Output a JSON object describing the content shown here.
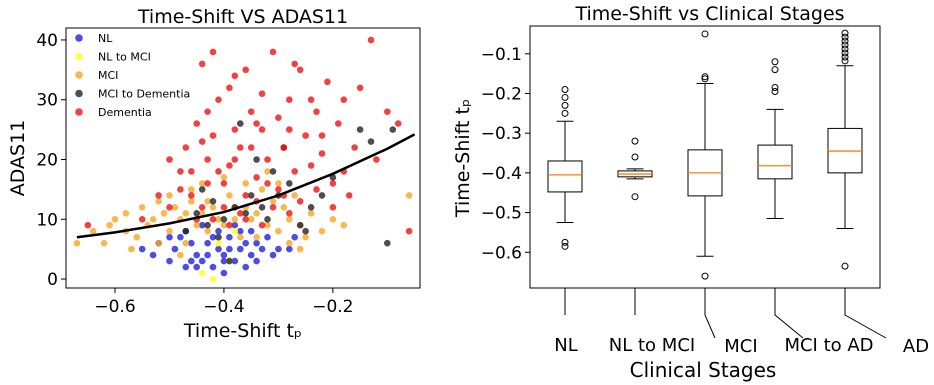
{
  "chart_data": [
    {
      "type": "scatter",
      "title": "Time-Shift VS ADAS11",
      "xlabel": "Time-Shift tₚ",
      "ylabel": "ADAS11",
      "xlim": [
        -0.69,
        -0.04
      ],
      "ylim": [
        -1.5,
        42
      ],
      "xticks": [
        -0.6,
        -0.4,
        -0.2
      ],
      "xtick_labels": [
        "−0.6",
        "−0.4",
        "−0.2"
      ],
      "yticks": [
        0,
        10,
        20,
        30,
        40
      ],
      "ytick_labels": [
        "0",
        "10",
        "20",
        "30",
        "40"
      ],
      "legend_position": "top-left",
      "series": [
        {
          "name": "NL",
          "color": "#1f1fe0",
          "points": [
            [
              -0.5,
              3
            ],
            [
              -0.49,
              5
            ],
            [
              -0.48,
              7
            ],
            [
              -0.47,
              2
            ],
            [
              -0.46,
              6
            ],
            [
              -0.45,
              4
            ],
            [
              -0.44,
              3
            ],
            [
              -0.43,
              6
            ],
            [
              -0.42,
              2
            ],
            [
              -0.41,
              5
            ],
            [
              -0.4,
              4
            ],
            [
              -0.39,
              7
            ],
            [
              -0.38,
              3
            ],
            [
              -0.37,
              5
            ],
            [
              -0.36,
              6
            ],
            [
              -0.35,
              4
            ],
            [
              -0.34,
              3
            ],
            [
              -0.33,
              5
            ],
            [
              -0.32,
              7
            ],
            [
              -0.3,
              5
            ],
            [
              -0.47,
              8
            ],
            [
              -0.44,
              9
            ],
            [
              -0.41,
              8
            ],
            [
              -0.38,
              9
            ],
            [
              -0.35,
              8
            ],
            [
              -0.52,
              6
            ],
            [
              -0.53,
              4
            ],
            [
              -0.45,
              2
            ],
            [
              -0.4,
              1
            ],
            [
              -0.43,
              4
            ],
            [
              -0.39,
              5
            ],
            [
              -0.36,
              2
            ],
            [
              -0.31,
              4
            ],
            [
              -0.28,
              5
            ],
            [
              -0.27,
              7
            ],
            [
              -0.46,
              3
            ],
            [
              -0.42,
              7
            ],
            [
              -0.37,
              8
            ],
            [
              -0.34,
              6
            ],
            [
              -0.55,
              5
            ],
            [
              -0.5,
              7
            ],
            [
              -0.4,
              3
            ]
          ]
        },
        {
          "name": "NL to MCI",
          "color": "#ffff1a",
          "points": [
            [
              -0.44,
              1
            ],
            [
              -0.42,
              0
            ],
            [
              -0.39,
              3
            ],
            [
              -0.41,
              6
            ],
            [
              -0.38,
              8
            ]
          ]
        },
        {
          "name": "MCI",
          "color": "#f5a623",
          "points": [
            [
              -0.67,
              6
            ],
            [
              -0.62,
              6
            ],
            [
              -0.6,
              10
            ],
            [
              -0.58,
              11
            ],
            [
              -0.57,
              5
            ],
            [
              -0.56,
              7
            ],
            [
              -0.55,
              12
            ],
            [
              -0.54,
              9
            ],
            [
              -0.53,
              10
            ],
            [
              -0.52,
              13
            ],
            [
              -0.51,
              11
            ],
            [
              -0.5,
              8
            ],
            [
              -0.49,
              12
            ],
            [
              -0.48,
              10
            ],
            [
              -0.47,
              6
            ],
            [
              -0.46,
              13
            ],
            [
              -0.45,
              9
            ],
            [
              -0.44,
              11
            ],
            [
              -0.43,
              8
            ],
            [
              -0.42,
              12
            ],
            [
              -0.41,
              10
            ],
            [
              -0.4,
              9
            ],
            [
              -0.39,
              14
            ],
            [
              -0.38,
              10
            ],
            [
              -0.37,
              7
            ],
            [
              -0.36,
              12
            ],
            [
              -0.35,
              10
            ],
            [
              -0.34,
              11
            ],
            [
              -0.33,
              15
            ],
            [
              -0.32,
              9
            ],
            [
              -0.31,
              13
            ],
            [
              -0.3,
              8
            ],
            [
              -0.29,
              12
            ],
            [
              -0.28,
              10
            ],
            [
              -0.27,
              14
            ],
            [
              -0.26,
              9
            ],
            [
              -0.25,
              7
            ],
            [
              -0.24,
              11
            ],
            [
              -0.22,
              8
            ],
            [
              -0.2,
              10
            ],
            [
              -0.18,
              9
            ],
            [
              -0.06,
              14
            ],
            [
              -0.58,
              8
            ],
            [
              -0.52,
              6
            ],
            [
              -0.46,
              15
            ],
            [
              -0.44,
              16
            ],
            [
              -0.4,
              17
            ],
            [
              -0.36,
              16
            ],
            [
              -0.32,
              18
            ],
            [
              -0.3,
              16
            ],
            [
              -0.5,
              14
            ],
            [
              -0.47,
              11
            ],
            [
              -0.43,
              13
            ],
            [
              -0.38,
              12
            ],
            [
              -0.34,
              7
            ],
            [
              -0.28,
              6
            ],
            [
              -0.26,
              5
            ],
            [
              -0.48,
              4
            ],
            [
              -0.64,
              8
            ],
            [
              -0.61,
              9
            ]
          ]
        },
        {
          "name": "MCI to Dementia",
          "color": "#222222",
          "points": [
            [
              -0.47,
              8
            ],
            [
              -0.45,
              11
            ],
            [
              -0.43,
              9
            ],
            [
              -0.42,
              13
            ],
            [
              -0.4,
              10
            ],
            [
              -0.38,
              12
            ],
            [
              -0.36,
              11
            ],
            [
              -0.35,
              14
            ],
            [
              -0.33,
              12
            ],
            [
              -0.32,
              10
            ],
            [
              -0.3,
              14
            ],
            [
              -0.28,
              16
            ],
            [
              -0.26,
              9
            ],
            [
              -0.24,
              12
            ],
            [
              -0.22,
              14
            ],
            [
              -0.2,
              17
            ],
            [
              -0.15,
              25
            ],
            [
              -0.13,
              23
            ],
            [
              -0.1,
              6
            ],
            [
              -0.09,
              25
            ],
            [
              -0.37,
              26
            ],
            [
              -0.34,
              20
            ],
            [
              -0.29,
              22
            ],
            [
              -0.41,
              7
            ],
            [
              -0.39,
              3
            ],
            [
              -0.44,
              15
            ],
            [
              -0.25,
              8
            ],
            [
              -0.31,
              18
            ]
          ]
        },
        {
          "name": "Dementia",
          "color": "#ee1111",
          "points": [
            [
              -0.65,
              9
            ],
            [
              -0.55,
              10
            ],
            [
              -0.5,
              12
            ],
            [
              -0.48,
              15
            ],
            [
              -0.47,
              22
            ],
            [
              -0.46,
              18
            ],
            [
              -0.45,
              26
            ],
            [
              -0.44,
              12
            ],
            [
              -0.43,
              20
            ],
            [
              -0.42,
              24
            ],
            [
              -0.41,
              30
            ],
            [
              -0.4,
              16
            ],
            [
              -0.39,
              19
            ],
            [
              -0.38,
              34
            ],
            [
              -0.37,
              22
            ],
            [
              -0.36,
              14
            ],
            [
              -0.35,
              28
            ],
            [
              -0.34,
              17
            ],
            [
              -0.33,
              25
            ],
            [
              -0.32,
              20
            ],
            [
              -0.31,
              38
            ],
            [
              -0.3,
              15
            ],
            [
              -0.29,
              22
            ],
            [
              -0.28,
              30
            ],
            [
              -0.27,
              18
            ],
            [
              -0.26,
              35
            ],
            [
              -0.25,
              24
            ],
            [
              -0.24,
              19
            ],
            [
              -0.23,
              28
            ],
            [
              -0.22,
              21
            ],
            [
              -0.21,
              33
            ],
            [
              -0.2,
              16
            ],
            [
              -0.19,
              26
            ],
            [
              -0.18,
              30
            ],
            [
              -0.17,
              14
            ],
            [
              -0.16,
              22
            ],
            [
              -0.15,
              32
            ],
            [
              -0.13,
              40
            ],
            [
              -0.12,
              20
            ],
            [
              -0.1,
              28
            ],
            [
              -0.08,
              26
            ],
            [
              -0.06,
              8
            ],
            [
              -0.44,
              36
            ],
            [
              -0.42,
              38
            ],
            [
              -0.39,
              32
            ],
            [
              -0.36,
              35
            ],
            [
              -0.33,
              31
            ],
            [
              -0.3,
              27
            ],
            [
              -0.27,
              36
            ],
            [
              -0.24,
              30
            ],
            [
              -0.4,
              12
            ],
            [
              -0.37,
              11
            ],
            [
              -0.34,
              13
            ],
            [
              -0.31,
              12
            ],
            [
              -0.28,
              11
            ],
            [
              -0.46,
              14
            ],
            [
              -0.43,
              16
            ],
            [
              -0.41,
              18
            ],
            [
              -0.38,
              20
            ],
            [
              -0.35,
              22
            ],
            [
              -0.32,
              16
            ],
            [
              -0.29,
              14
            ],
            [
              -0.26,
              13
            ],
            [
              -0.23,
              15
            ],
            [
              -0.2,
              12
            ],
            [
              -0.18,
              18
            ],
            [
              -0.45,
              10
            ],
            [
              -0.42,
              10
            ],
            [
              -0.39,
              9
            ],
            [
              -0.36,
              10
            ],
            [
              -0.33,
              9
            ],
            [
              -0.48,
              18
            ],
            [
              -0.5,
              20
            ],
            [
              -0.44,
              23
            ],
            [
              -0.34,
              26
            ],
            [
              -0.28,
              25
            ],
            [
              -0.22,
              24
            ],
            [
              -0.52,
              14
            ],
            [
              -0.43,
              28
            ],
            [
              -0.38,
              25
            ]
          ]
        }
      ],
      "trend_curve": {
        "color": "#000000",
        "x": [
          -0.67,
          -0.6,
          -0.5,
          -0.4,
          -0.3,
          -0.2,
          -0.1,
          -0.05
        ],
        "y": [
          7,
          7.8,
          9.3,
          11.2,
          14,
          17.6,
          21.8,
          24.2
        ]
      }
    },
    {
      "type": "boxplot",
      "title": "Time-Shift vs Clinical Stages",
      "xlabel": "Clinical Stages",
      "ylabel": "Time-Shift tₚ",
      "ylim": [
        -0.69,
        -0.03
      ],
      "yticks": [
        -0.6,
        -0.5,
        -0.4,
        -0.3,
        -0.2,
        -0.1
      ],
      "ytick_labels": [
        "−0.6",
        "−0.5",
        "−0.4",
        "−0.3",
        "−0.2",
        "−0.1"
      ],
      "median_color": "#ff7f0e",
      "categories": [
        "NL",
        "NL to MCI",
        "MCI",
        "MCI to AD",
        "AD"
      ],
      "boxes": [
        {
          "label": "NL",
          "whislo": -0.525,
          "q1": -0.448,
          "med": -0.405,
          "q3": -0.37,
          "whishi": -0.27,
          "fliers": [
            -0.19,
            -0.21,
            -0.23,
            -0.25,
            -0.575,
            -0.585
          ]
        },
        {
          "label": "NL to MCI",
          "whislo": -0.415,
          "q1": -0.41,
          "med": -0.403,
          "q3": -0.395,
          "whishi": -0.39,
          "fliers": [
            -0.32,
            -0.36,
            -0.46
          ]
        },
        {
          "label": "MCI",
          "whislo": -0.61,
          "q1": -0.458,
          "med": -0.4,
          "q3": -0.342,
          "whishi": -0.175,
          "fliers": [
            -0.05,
            -0.158,
            -0.163,
            -0.66
          ]
        },
        {
          "label": "MCI to AD",
          "whislo": -0.515,
          "q1": -0.415,
          "med": -0.382,
          "q3": -0.33,
          "whishi": -0.24,
          "fliers": [
            -0.12,
            -0.14,
            -0.185,
            -0.195
          ]
        },
        {
          "label": "AD",
          "whislo": -0.54,
          "q1": -0.4,
          "med": -0.345,
          "q3": -0.288,
          "whishi": -0.13,
          "fliers": [
            -0.048,
            -0.058,
            -0.068,
            -0.078,
            -0.088,
            -0.098,
            -0.108,
            -0.118,
            -0.635
          ]
        }
      ]
    }
  ]
}
